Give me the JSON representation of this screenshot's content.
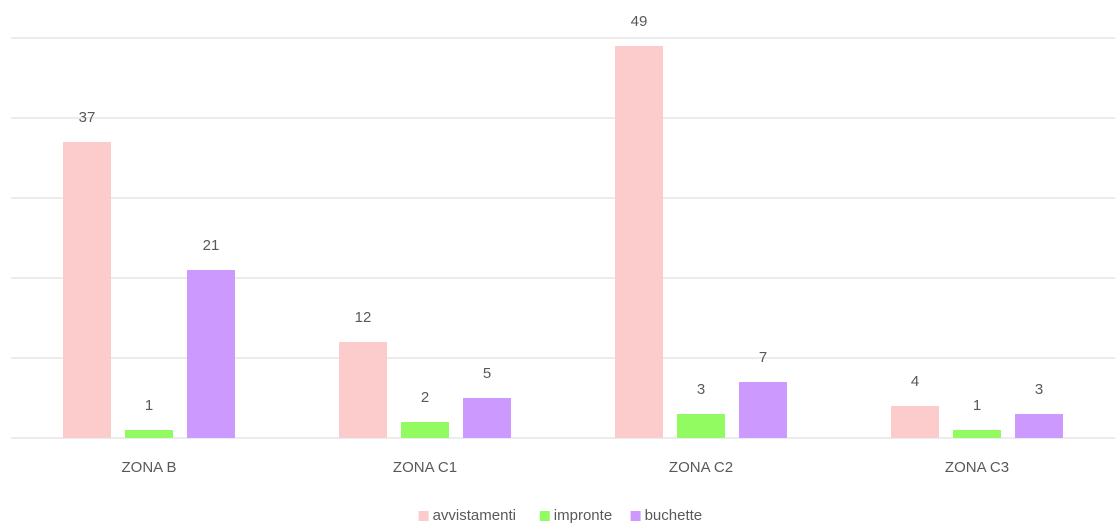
{
  "chart_data": {
    "type": "bar",
    "categories": [
      "ZONA B",
      "ZONA C1",
      "ZONA C2",
      "ZONA C3"
    ],
    "series": [
      {
        "name": "avvistamenti",
        "color": "#fccbcb",
        "values": [
          37,
          12,
          49,
          4
        ]
      },
      {
        "name": "impronte",
        "color": "#92fb62",
        "values": [
          1,
          2,
          3,
          1
        ]
      },
      {
        "name": "buchette",
        "color": "#cc99ff",
        "values": [
          21,
          5,
          7,
          3
        ]
      }
    ],
    "ylim": [
      0,
      50
    ],
    "yticks": [
      0,
      10,
      20,
      30,
      40,
      50
    ],
    "grid": true,
    "legend": "bottom"
  }
}
